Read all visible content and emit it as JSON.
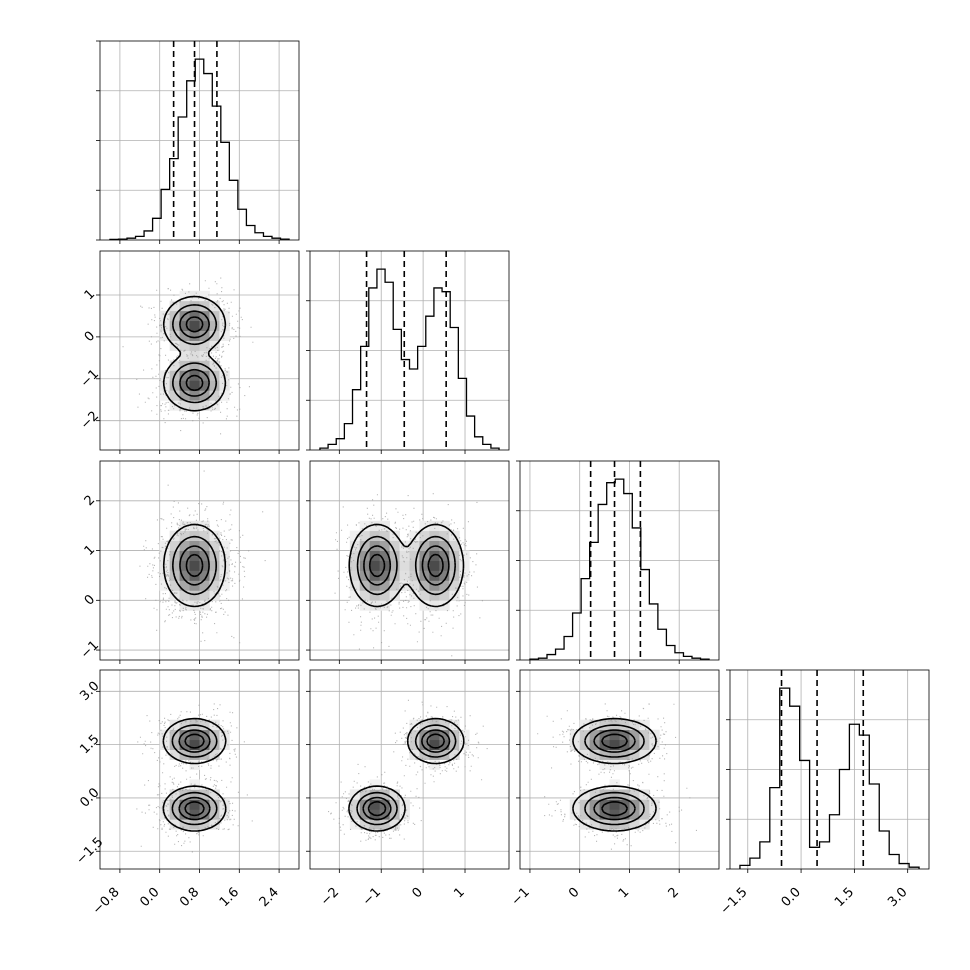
{
  "chart_data": {
    "type": "corner",
    "n_params": 4,
    "axis_labels": [
      "",
      "",
      "",
      ""
    ],
    "grid": true,
    "ranges": [
      [
        -1.2,
        2.8
      ],
      [
        -2.7,
        2.05
      ],
      [
        -1.2,
        2.8
      ],
      [
        -2.0,
        3.6
      ]
    ],
    "ticks": [
      [
        -0.8,
        0.0,
        0.8,
        1.6,
        2.4
      ],
      [
        -2,
        -1,
        0,
        1
      ],
      [
        -1,
        0,
        1,
        2
      ],
      [
        -1.5,
        0.0,
        1.5,
        3.0
      ]
    ],
    "tick_labels": [
      [
        "−0.8",
        "0.0",
        "0.8",
        "1.6",
        "2.4"
      ],
      [
        "−2",
        "−1",
        "0",
        "1"
      ],
      [
        "−1",
        "0",
        "1",
        "2"
      ],
      [
        "−1.5",
        "0.0",
        "1.5",
        "3.0"
      ]
    ],
    "quantiles": [
      [
        0.28,
        0.7,
        1.15
      ],
      [
        -1.35,
        -0.45,
        0.55
      ],
      [
        0.22,
        0.7,
        1.22
      ],
      [
        -0.55,
        0.45,
        1.75
      ]
    ],
    "histograms": [
      [
        0.3,
        0.5,
        1,
        2,
        5,
        12,
        28,
        45,
        68,
        88,
        100,
        92,
        74,
        54,
        33,
        17,
        8,
        4,
        2,
        1,
        0.5
      ],
      [
        1,
        3,
        6,
        14,
        32,
        55,
        86,
        96,
        89,
        64,
        48,
        43,
        55,
        71,
        86,
        84,
        65,
        38,
        18,
        7,
        3,
        1
      ],
      [
        0.5,
        1,
        3,
        6,
        13,
        26,
        45,
        65,
        86,
        98,
        100,
        92,
        73,
        50,
        31,
        17,
        8,
        4,
        2,
        1,
        0.5
      ],
      [
        2,
        6,
        15,
        45,
        100,
        90,
        60,
        12,
        15,
        30,
        55,
        80,
        74,
        47,
        21,
        8,
        3,
        1
      ]
    ],
    "modes": [
      {
        "w": 0.5,
        "mu": [
          0.7,
          -1.1,
          0.7,
          -0.3
        ],
        "sd": [
          0.3,
          0.32,
          0.4,
          0.3
        ]
      },
      {
        "w": 0.5,
        "mu": [
          0.7,
          0.3,
          0.7,
          1.6
        ],
        "sd": [
          0.3,
          0.32,
          0.4,
          0.3
        ]
      }
    ]
  }
}
